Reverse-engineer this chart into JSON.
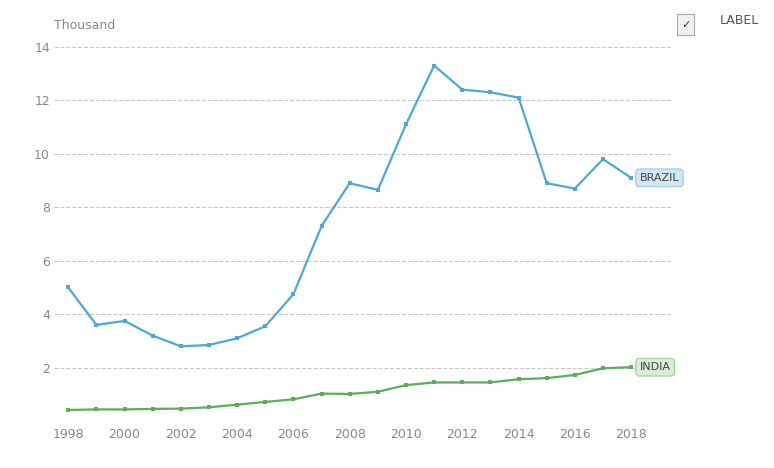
{
  "brazil_years": [
    1998,
    1999,
    2000,
    2001,
    2002,
    2003,
    2004,
    2005,
    2006,
    2007,
    2008,
    2009,
    2010,
    2011,
    2012,
    2013,
    2014,
    2015,
    2016,
    2017,
    2018
  ],
  "brazil_values": [
    5.0,
    3.6,
    3.75,
    3.2,
    2.8,
    2.85,
    3.1,
    3.55,
    4.75,
    7.3,
    8.9,
    8.65,
    11.1,
    13.3,
    12.4,
    12.3,
    12.1,
    8.9,
    8.7,
    9.8,
    9.1
  ],
  "india_years": [
    1998,
    1999,
    2000,
    2001,
    2002,
    2003,
    2004,
    2005,
    2006,
    2007,
    2008,
    2009,
    2010,
    2011,
    2012,
    2013,
    2014,
    2015,
    2016,
    2017,
    2018
  ],
  "india_values": [
    0.42,
    0.44,
    0.44,
    0.46,
    0.47,
    0.52,
    0.62,
    0.72,
    0.82,
    1.03,
    1.02,
    1.1,
    1.35,
    1.45,
    1.45,
    1.45,
    1.57,
    1.61,
    1.73,
    1.98,
    2.02
  ],
  "brazil_color": "#4EA8D2",
  "india_color": "#5BAD5B",
  "brazil_label": "BRAZIL",
  "india_label": "INDIA",
  "ylabel": "Thousand",
  "ylim": [
    0,
    14
  ],
  "yticks": [
    2,
    4,
    6,
    8,
    10,
    12,
    14
  ],
  "xlim": [
    1997.5,
    2019.5
  ],
  "xticks": [
    1998,
    2000,
    2002,
    2004,
    2006,
    2008,
    2010,
    2012,
    2014,
    2016,
    2018
  ],
  "legend_label": "LABEL",
  "bg_color": "#ffffff",
  "grid_color": "#c8c8c8",
  "brazil_box_color": "#d0e8f5",
  "brazil_box_edge": "#9ec8e0",
  "india_box_color": "#d5eed5",
  "india_box_edge": "#9ecf9e"
}
